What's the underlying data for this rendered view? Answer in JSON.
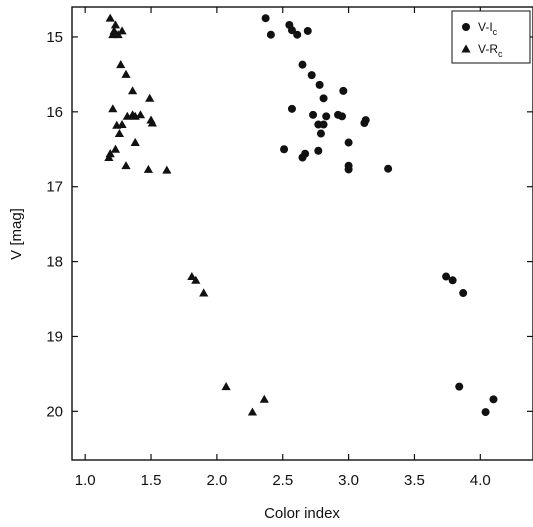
{
  "chart_data": {
    "type": "scatter",
    "title": "",
    "xlabel": "Color index",
    "ylabel": "V [mag]",
    "xlim": [
      0.9,
      4.4
    ],
    "ylim": [
      14.6,
      20.65
    ],
    "y_inverted": true,
    "grid": false,
    "legend_position": "top-right",
    "xticks": [
      "1.0",
      "1.5",
      "2.0",
      "2.5",
      "3.0",
      "3.5",
      "4.0"
    ],
    "xtick_values": [
      1.0,
      1.5,
      2.0,
      2.5,
      3.0,
      3.5,
      4.0
    ],
    "yticks": [
      "15",
      "16",
      "17",
      "18",
      "19",
      "20"
    ],
    "ytick_values": [
      15,
      16,
      17,
      18,
      19,
      20
    ],
    "series": [
      {
        "name": "V-Ic",
        "legend_main": "V-I",
        "legend_sub": "c",
        "marker": "circle",
        "color": "#111111",
        "points": [
          [
            2.37,
            14.75
          ],
          [
            2.41,
            14.97
          ],
          [
            2.55,
            14.84
          ],
          [
            2.57,
            14.91
          ],
          [
            2.61,
            14.97
          ],
          [
            2.69,
            14.92
          ],
          [
            2.65,
            15.37
          ],
          [
            2.72,
            15.51
          ],
          [
            2.78,
            15.64
          ],
          [
            2.96,
            15.72
          ],
          [
            2.81,
            15.82
          ],
          [
            2.57,
            15.96
          ],
          [
            2.73,
            16.04
          ],
          [
            2.83,
            16.06
          ],
          [
            2.92,
            16.04
          ],
          [
            2.95,
            16.06
          ],
          [
            3.13,
            16.11
          ],
          [
            3.12,
            16.15
          ],
          [
            2.77,
            16.17
          ],
          [
            2.81,
            16.17
          ],
          [
            2.79,
            16.29
          ],
          [
            3.0,
            16.41
          ],
          [
            2.51,
            16.5
          ],
          [
            2.77,
            16.52
          ],
          [
            2.67,
            16.56
          ],
          [
            2.65,
            16.61
          ],
          [
            3.0,
            16.72
          ],
          [
            3.0,
            16.77
          ],
          [
            3.3,
            16.76
          ],
          [
            3.74,
            18.2
          ],
          [
            3.79,
            18.25
          ],
          [
            3.87,
            18.42
          ],
          [
            3.84,
            19.67
          ],
          [
            4.1,
            19.84
          ],
          [
            4.04,
            20.01
          ]
        ]
      },
      {
        "name": "V-Rc",
        "legend_main": "V-R",
        "legend_sub": "c",
        "marker": "triangle",
        "color": "#111111",
        "points": [
          [
            1.19,
            14.75
          ],
          [
            1.23,
            14.84
          ],
          [
            1.22,
            14.92
          ],
          [
            1.28,
            14.92
          ],
          [
            1.21,
            14.97
          ],
          [
            1.25,
            14.97
          ],
          [
            1.27,
            15.37
          ],
          [
            1.31,
            15.5
          ],
          [
            1.36,
            15.72
          ],
          [
            1.49,
            15.82
          ],
          [
            1.21,
            15.96
          ],
          [
            1.36,
            16.04
          ],
          [
            1.32,
            16.06
          ],
          [
            1.42,
            16.04
          ],
          [
            1.38,
            16.06
          ],
          [
            1.5,
            16.11
          ],
          [
            1.51,
            16.15
          ],
          [
            1.28,
            16.17
          ],
          [
            1.24,
            16.18
          ],
          [
            1.26,
            16.29
          ],
          [
            1.38,
            16.41
          ],
          [
            1.23,
            16.5
          ],
          [
            1.19,
            16.56
          ],
          [
            1.18,
            16.61
          ],
          [
            1.31,
            16.72
          ],
          [
            1.48,
            16.77
          ],
          [
            1.62,
            16.78
          ],
          [
            1.81,
            18.2
          ],
          [
            1.84,
            18.25
          ],
          [
            1.9,
            18.42
          ],
          [
            2.07,
            19.67
          ],
          [
            2.36,
            19.84
          ],
          [
            2.27,
            20.01
          ]
        ]
      }
    ]
  }
}
